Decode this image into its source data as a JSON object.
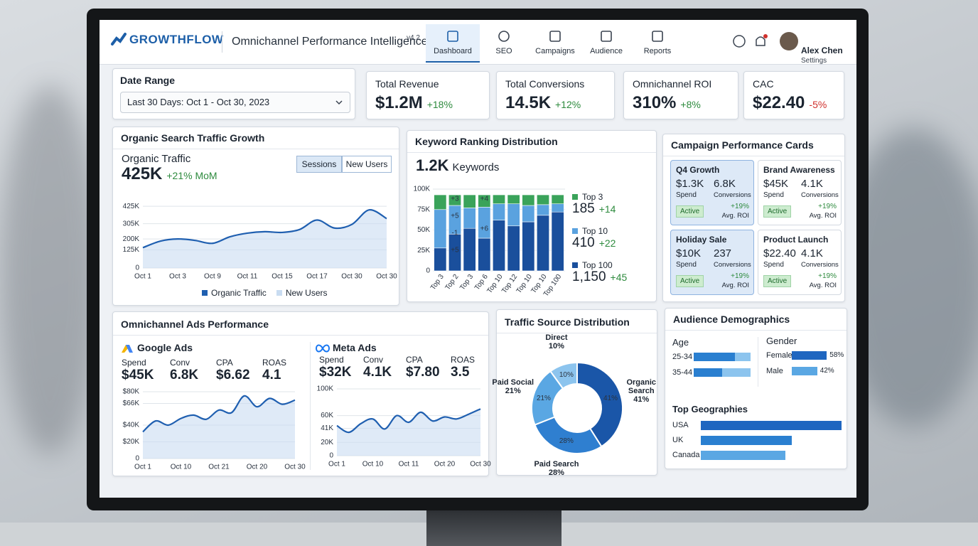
{
  "header": {
    "logo": "GROWTHFLOW",
    "title": "Omnichannel Performance Intelligence",
    "version": "v4.2",
    "nav": [
      "Dashboard",
      "SEO",
      "Campaigns",
      "Audience",
      "Reports"
    ],
    "user": "Alex Chen",
    "user_sub": "Settings"
  },
  "date_range": {
    "label": "Date Range",
    "value": "Last 30 Days: Oct 1 - Oct 30, 2023"
  },
  "kpis": [
    {
      "label": "Total Revenue",
      "value": "$1.2M",
      "change": "+18%",
      "color": "#2e8b3e"
    },
    {
      "label": "Total Conversions",
      "value": "14.5K",
      "change": "+12%",
      "color": "#2e8b3e"
    },
    {
      "label": "Omnichannel ROI",
      "value": "310%",
      "change": "+8%",
      "color": "#2e8b3e"
    },
    {
      "label": "CAC",
      "value": "$22.40",
      "change": "-5%",
      "color": "#d0312d"
    }
  ],
  "organic": {
    "title": "Organic Search Traffic Growth",
    "metric_label": "Organic Traffic",
    "metric": "425K",
    "change": "+21% MoM",
    "toggles": [
      "Sessions",
      "New Users"
    ],
    "legend": [
      {
        "name": "Organic Traffic",
        "color": "#1f5fb0"
      },
      {
        "name": "New Users",
        "color": "#c9dcf1"
      }
    ],
    "chart": {
      "type": "area",
      "categories": [
        "Oct 1",
        null,
        "Oct 3",
        null,
        "Oct 9",
        null,
        "Oct 11",
        null,
        "Oct 15",
        null,
        "Oct 17",
        null,
        "Oct 30",
        null,
        "Oct 30"
      ],
      "series": [
        {
          "name": "Organic Traffic",
          "color": "#1f5fb0",
          "area_color": "#c9dcf1",
          "values": [
            140000,
            185000,
            200000,
            190000,
            170000,
            215000,
            240000,
            250000,
            245000,
            265000,
            330000,
            275000,
            300000,
            400000,
            340000
          ]
        }
      ],
      "ylim": [
        0,
        450000
      ],
      "yticks": [
        0,
        {
          "value": 125000,
          "label": "125K"
        },
        {
          "value": 200000,
          "label": "200K"
        },
        {
          "value": 305000,
          "label": "305K"
        },
        {
          "value": 425000,
          "label": "425K"
        }
      ]
    }
  },
  "keywords": {
    "title": "Keyword Ranking Distribution",
    "metric": "1.2K",
    "metric_label": "Keywords",
    "chart": {
      "type": "stacked_bar",
      "categories": [
        "Top 3",
        "Top 2",
        "Top 3",
        "Top 6",
        "Top 10",
        "Top 12",
        "Top 10",
        "Top 10",
        "Top 100"
      ],
      "series": [
        {
          "name": "Top 3",
          "color": "#3aa35a",
          "total": "185",
          "change": "+14",
          "values": [
            18000,
            13000,
            16000,
            15000,
            11000,
            11000,
            13000,
            12000,
            11000
          ]
        },
        {
          "name": "Top 10",
          "color": "#5aa2df",
          "total": "410",
          "change": "+22",
          "values": [
            47000,
            35000,
            25000,
            38000,
            20000,
            27000,
            20000,
            13000,
            10000
          ]
        },
        {
          "name": "Top 100",
          "color": "#1a4f9c",
          "total": "1,150",
          "change": "+45",
          "values": [
            28000,
            45000,
            52000,
            40000,
            62000,
            55000,
            60000,
            68000,
            72000
          ]
        }
      ],
      "annotations": [
        "+3",
        "+5",
        "-1",
        "+5",
        "+4",
        "+6"
      ],
      "ylim": [
        0,
        100000
      ],
      "yticks": [
        0,
        {
          "value": 25000,
          "label": "25K"
        },
        {
          "value": 50000,
          "label": "50K"
        },
        {
          "value": 75000,
          "label": "75K"
        },
        {
          "value": 100000,
          "label": "100K"
        }
      ]
    }
  },
  "campaigns": {
    "title": "Campaign Performance Cards",
    "cards": [
      {
        "name": "Q4 Growth",
        "spend": "$1.3K",
        "spend_label": "Spend",
        "conversions": "6.8K",
        "conversions_label": "Conversions",
        "status": "Active",
        "roi": "+19%",
        "roi_label": "Avg. ROI"
      },
      {
        "name": "Brand Awareness",
        "spend": "$45K",
        "spend_label": "Spend",
        "conversions": "4.1K",
        "conversions_label": "Conversions",
        "status": "Active",
        "roi": "+19%",
        "roi_label": "Avg. ROI"
      },
      {
        "name": "Holiday Sale",
        "spend": "$10K",
        "spend_label": "Spend",
        "conversions": "237",
        "conversions_label": "Conversions",
        "status": "Active",
        "roi": "+19%",
        "roi_label": "Avg. ROI"
      },
      {
        "name": "Product Launch",
        "spend": "$22.40",
        "spend_label": "Spend",
        "conversions": "4.1K",
        "conversions_label": "Conversions",
        "status": "Active",
        "roi": "+19%",
        "roi_label": "Avg. ROI"
      }
    ]
  },
  "ads": {
    "title": "Omnichannel Ads Performance",
    "channels": [
      {
        "name": "Google Ads",
        "metrics": [
          {
            "label": "Spend",
            "value": "$45K"
          },
          {
            "label": "Conv",
            "value": "6.8K"
          },
          {
            "label": "CPA",
            "value": "$6.62"
          },
          {
            "label": "ROAS",
            "value": "4.1"
          }
        ],
        "chart": {
          "type": "area",
          "categories": [
            "Oct 1",
            null,
            null,
            "Oct 10",
            null,
            null,
            "Oct 21",
            null,
            null,
            "Oct 20",
            null,
            null,
            "Oct 30"
          ],
          "series": [
            {
              "name": "Google Ads",
              "color": "#1f5fb0",
              "area_color": "#c9dcf1",
              "values": [
                32000,
                45000,
                40000,
                48000,
                52000,
                47000,
                58000,
                55000,
                75000,
                62000,
                72000,
                65000,
                70000
              ]
            }
          ],
          "ylim": [
            0,
            80000
          ],
          "yticks": [
            0,
            {
              "value": 20000,
              "label": "$20K"
            },
            {
              "value": 40000,
              "label": "$40K"
            },
            {
              "value": 66000,
              "label": "$66K"
            },
            {
              "value": 80000,
              "label": "$80K"
            }
          ]
        }
      },
      {
        "name": "Meta Ads",
        "metrics": [
          {
            "label": "Spend",
            "value": "$32K"
          },
          {
            "label": "Conv",
            "value": "4.1K"
          },
          {
            "label": "CPA",
            "value": "$7.80"
          },
          {
            "label": "ROAS",
            "value": "3.5"
          }
        ],
        "chart": {
          "type": "area",
          "categories": [
            "Oct 1",
            null,
            null,
            "Oct 10",
            null,
            null,
            "Oct 11",
            null,
            null,
            "Oct 20",
            null,
            null,
            "Oct 30"
          ],
          "series": [
            {
              "name": "Meta Ads",
              "color": "#1f5fb0",
              "area_color": "#c9dcf1",
              "values": [
                45000,
                35000,
                48000,
                55000,
                40000,
                60000,
                50000,
                65000,
                52000,
                58000,
                55000,
                62000,
                70000
              ]
            }
          ],
          "ylim": [
            0,
            100000
          ],
          "yticks": [
            0,
            {
              "value": 20000,
              "label": "20K"
            },
            {
              "value": 41000,
              "label": "41K"
            },
            {
              "value": 60000,
              "label": "60K"
            },
            {
              "value": 100000,
              "label": "100K"
            }
          ]
        }
      }
    ]
  },
  "traffic": {
    "title": "Traffic Source Distribution",
    "chart": {
      "type": "donut",
      "categories": [
        "Organic Search",
        "Paid Search",
        "Paid Social",
        "Direct"
      ],
      "values": [
        41,
        28,
        21,
        10
      ],
      "value_labels": [
        "41%",
        "28%",
        "21%",
        "10%"
      ],
      "colors": [
        "#1a56a8",
        "#2f7fd0",
        "#5aa7e3",
        "#8cc4ee"
      ]
    }
  },
  "audience": {
    "title": "Audience Demographics",
    "age": {
      "label": "Age",
      "categories": [
        "25-34",
        "35-44"
      ],
      "values": [
        32,
        22
      ],
      "color": "#2a7fd0",
      "track_color": "#8cc4ee"
    },
    "gender": {
      "label": "Gender",
      "categories": [
        "Female",
        "Male"
      ],
      "values": [
        58,
        42
      ],
      "value_labels": [
        "58%",
        "42%"
      ],
      "colors": [
        "#1f66c0",
        "#5aa7e3"
      ]
    },
    "geo": {
      "label": "Top Geographies",
      "categories": [
        "USA",
        "UK",
        "Canada"
      ],
      "values": [
        45,
        29,
        27
      ],
      "colors": [
        "#1f66c0",
        "#2a7fd0",
        "#5aa7e3"
      ]
    }
  }
}
